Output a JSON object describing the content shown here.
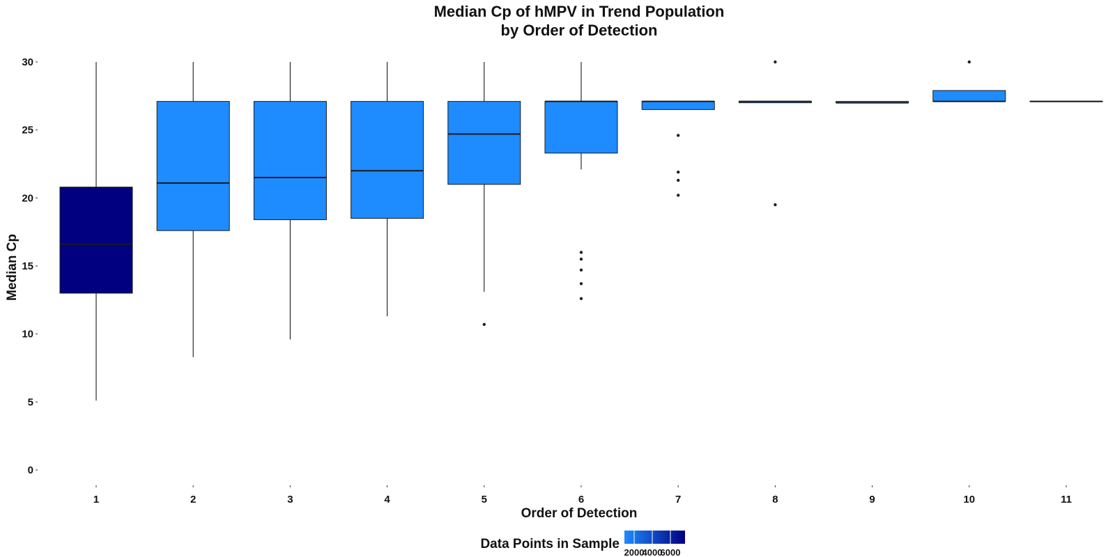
{
  "chart_data": {
    "type": "box",
    "title_lines": [
      "Median Cp of hMPV in Trend Population",
      "by Order of Detection"
    ],
    "xlabel": "Order of Detection",
    "ylabel": "Median Cp",
    "categories": [
      "1",
      "2",
      "3",
      "4",
      "5",
      "6",
      "7",
      "8",
      "9",
      "10",
      "11"
    ],
    "y_ticks": [
      0,
      5,
      10,
      15,
      20,
      25,
      30
    ],
    "y_tick_labels": [
      "0",
      "5",
      "10",
      "15",
      "20",
      "25",
      "30"
    ],
    "ylim": [
      -1.7,
      31.5
    ],
    "grid": false,
    "boxes": [
      {
        "category": "1",
        "whisker_low": 5.1,
        "q1": 13.0,
        "median": 16.6,
        "q3": 20.8,
        "whisker_high": 30.0,
        "outliers": [],
        "n_relative": "high"
      },
      {
        "category": "2",
        "whisker_low": 8.3,
        "q1": 17.6,
        "median": 21.1,
        "q3": 27.1,
        "whisker_high": 30.0,
        "outliers": [],
        "n_relative": "low"
      },
      {
        "category": "3",
        "whisker_low": 9.6,
        "q1": 18.4,
        "median": 21.5,
        "q3": 27.1,
        "whisker_high": 30.0,
        "outliers": [],
        "n_relative": "low"
      },
      {
        "category": "4",
        "whisker_low": 11.3,
        "q1": 18.5,
        "median": 22.0,
        "q3": 27.1,
        "whisker_high": 30.0,
        "outliers": [],
        "n_relative": "low"
      },
      {
        "category": "5",
        "whisker_low": 13.1,
        "q1": 21.0,
        "median": 24.7,
        "q3": 27.1,
        "whisker_high": 30.0,
        "outliers": [
          10.7
        ],
        "n_relative": "low"
      },
      {
        "category": "6",
        "whisker_low": 22.1,
        "q1": 23.3,
        "median": 27.1,
        "q3": 27.1,
        "whisker_high": 30.0,
        "outliers": [
          12.6,
          13.7,
          14.7,
          15.5,
          16.0
        ],
        "n_relative": "low"
      },
      {
        "category": "7",
        "whisker_low": 26.5,
        "q1": 26.5,
        "median": 27.1,
        "q3": 27.1,
        "whisker_high": 27.1,
        "outliers": [
          20.2,
          21.3,
          21.9,
          24.6
        ],
        "n_relative": "low"
      },
      {
        "category": "8",
        "whisker_low": 27.0,
        "q1": 27.0,
        "median": 27.1,
        "q3": 27.1,
        "whisker_high": 27.1,
        "outliers": [
          19.5,
          30.0
        ],
        "n_relative": "low"
      },
      {
        "category": "9",
        "whisker_low": 27.0,
        "q1": 27.0,
        "median": 27.0,
        "q3": 27.1,
        "whisker_high": 27.1,
        "outliers": [],
        "n_relative": "low"
      },
      {
        "category": "10",
        "whisker_low": 27.1,
        "q1": 27.1,
        "median": 27.1,
        "q3": 27.9,
        "whisker_high": 27.9,
        "outliers": [
          30.0
        ],
        "n_relative": "low"
      },
      {
        "category": "11",
        "whisker_low": 27.1,
        "q1": 27.1,
        "median": 27.1,
        "q3": 27.1,
        "whisker_high": 27.1,
        "outliers": [],
        "n_relative": "low"
      }
    ],
    "colors": {
      "low_fill": "#1e8cff",
      "high_fill": "#000080",
      "line": "#1a1a1a",
      "whisker": "#000000"
    },
    "legend": {
      "title": "Data Points in Sample",
      "placement": "bottom",
      "gradient_from": "#1e8cff",
      "gradient_to": "#000080",
      "tick_labels": [
        "2000",
        "4000",
        "6000"
      ]
    }
  }
}
